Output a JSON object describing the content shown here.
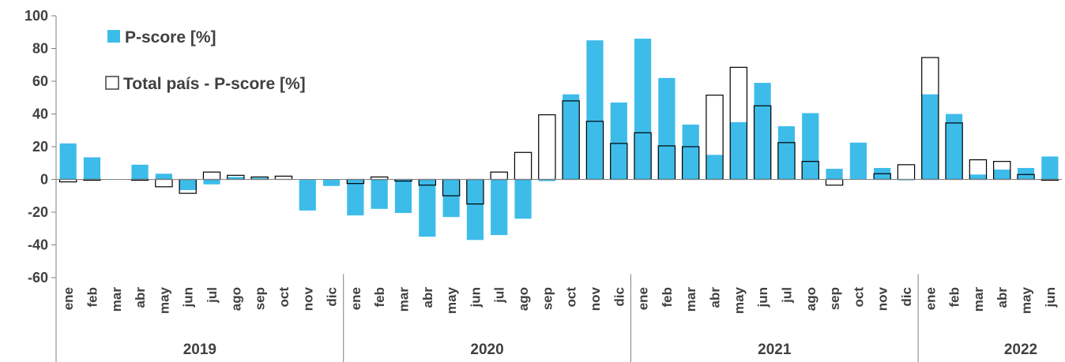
{
  "chart_data": {
    "type": "bar",
    "colors": {
      "pscore": "#3DBCEA",
      "total_fill": "#ffffff",
      "total_stroke": "#000000",
      "text": "#404040",
      "axis": "#808080"
    },
    "legend": {
      "placement": "top-left",
      "entries": [
        "P-score [%]",
        "Total país -  P-score [%]"
      ]
    },
    "ylim": [
      -60,
      100
    ],
    "yticks": [
      100,
      80,
      60,
      40,
      20,
      0,
      -20,
      -40,
      -60
    ],
    "grid": false,
    "years": [
      {
        "label": "2019",
        "months": 12
      },
      {
        "label": "2020",
        "months": 12
      },
      {
        "label": "2021",
        "months": 12
      },
      {
        "label": "2022",
        "months": 6
      }
    ],
    "categories": [
      "ene",
      "feb",
      "mar",
      "abr",
      "may",
      "jun",
      "jul",
      "ago",
      "sep",
      "oct",
      "nov",
      "dic",
      "ene",
      "feb",
      "mar",
      "abr",
      "may",
      "jun",
      "jul",
      "ago",
      "sep",
      "oct",
      "nov",
      "dic",
      "ene",
      "feb",
      "mar",
      "abr",
      "may",
      "jun",
      "jul",
      "ago",
      "sep",
      "oct",
      "nov",
      "dic",
      "ene",
      "feb",
      "mar",
      "abr",
      "may",
      "jun"
    ],
    "series": [
      {
        "name": "P-score [%]",
        "values": [
          22,
          13.5,
          0,
          9,
          3.5,
          -6.5,
          -3,
          1.5,
          1,
          0,
          -19,
          -4,
          -22,
          -18,
          -20.5,
          -35,
          -23,
          -37,
          -34,
          -24,
          -1,
          52,
          85,
          47,
          86,
          62,
          33.5,
          15,
          35,
          59,
          32.5,
          40.5,
          6.5,
          22.5,
          7,
          -0.5,
          52,
          40,
          3,
          6,
          7,
          14
        ]
      },
      {
        "name": "Total país -  P-score [%]",
        "values": [
          -1.5,
          -0.5,
          0,
          -0.5,
          -4.5,
          -8.5,
          4.5,
          2.5,
          1.5,
          2,
          0,
          0,
          -2.5,
          1.5,
          -1,
          -3.5,
          -10,
          -15,
          4.5,
          16.5,
          39.5,
          48,
          35.5,
          22,
          28.5,
          20.5,
          20,
          51.5,
          68.5,
          45,
          22.5,
          11,
          -3.5,
          0,
          3.5,
          9,
          74.5,
          34.5,
          12,
          11,
          3,
          -0.5
        ]
      }
    ]
  }
}
